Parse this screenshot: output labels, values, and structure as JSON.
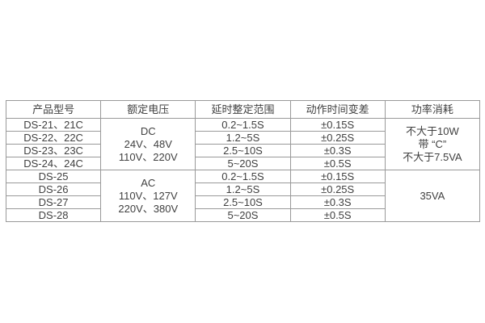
{
  "colors": {
    "background": "#ffffff",
    "border": "#999999",
    "text": "#404040"
  },
  "table": {
    "headers": [
      "产品型号",
      "额定电压",
      "延时整定范围",
      "动作时间变差",
      "功率消耗"
    ],
    "groups": [
      {
        "voltage_lines": [
          "DC",
          "24V、48V",
          "110V、220V"
        ],
        "power_lines": [
          "不大于10W",
          "带 “C”",
          "不大于7.5VA"
        ],
        "rows": [
          {
            "model": "DS-21、21C",
            "range": "0.2~1.5S",
            "variation": "±0.15S"
          },
          {
            "model": "DS-22、22C",
            "range": "1.2~5S",
            "variation": "±0.25S"
          },
          {
            "model": "DS-23、23C",
            "range": "2.5~10S",
            "variation": "±0.3S"
          },
          {
            "model": "DS-24、24C",
            "range": "5~20S",
            "variation": "±0.5S"
          }
        ]
      },
      {
        "voltage_lines": [
          "AC",
          "110V、127V",
          "220V、380V"
        ],
        "power_lines": [
          "35VA"
        ],
        "rows": [
          {
            "model": "DS-25",
            "range": "0.2~1.5S",
            "variation": "±0.15S"
          },
          {
            "model": "DS-26",
            "range": "1.2~5S",
            "variation": "±0.25S"
          },
          {
            "model": "DS-27",
            "range": "2.5~10S",
            "variation": "±0.3S"
          },
          {
            "model": "DS-28",
            "range": "5~20S",
            "variation": "±0.5S"
          }
        ]
      }
    ]
  }
}
